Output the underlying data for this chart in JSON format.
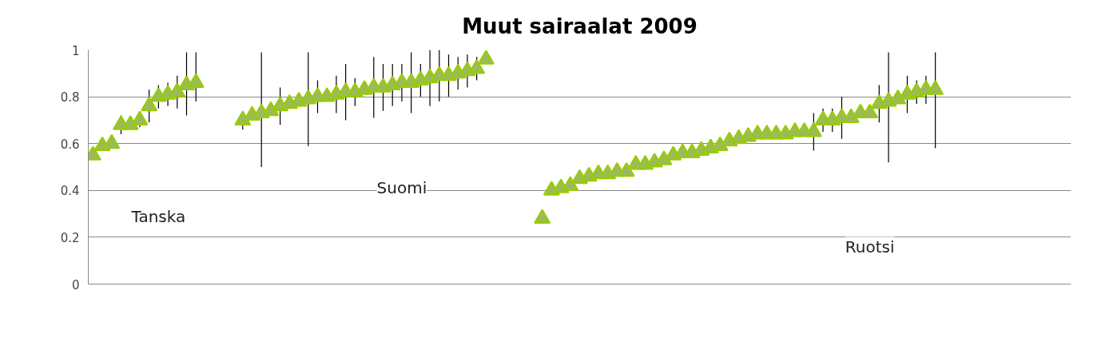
{
  "chart_data": {
    "type": "scatter",
    "title": "Muut sairaalat 2009",
    "categories": [
      null,
      null,
      null,
      null,
      null,
      null,
      null,
      null,
      null,
      null,
      null,
      null,
      null,
      null,
      null,
      null,
      null,
      null,
      null,
      null,
      null,
      null,
      null,
      null,
      null,
      null,
      null,
      null,
      null,
      null,
      null,
      null,
      null,
      null,
      null,
      null,
      null,
      null,
      null,
      null,
      null,
      null,
      null,
      null,
      null,
      null,
      null,
      null,
      null,
      null,
      null,
      null,
      null,
      null,
      null,
      null,
      null,
      null,
      null,
      null,
      null,
      null,
      null,
      null,
      null,
      null,
      null,
      null,
      null,
      null,
      null,
      null,
      null,
      null,
      null,
      null,
      null,
      null,
      null,
      null,
      null,
      null,
      null,
      null,
      null,
      null,
      null,
      null,
      null,
      null,
      null,
      null,
      null,
      null,
      null,
      null,
      null,
      null,
      null,
      null,
      null,
      null,
      null,
      null,
      null
    ],
    "series": [
      {
        "color": "#9bbb59",
        "values": [
          0.55,
          0.59,
          0.6,
          0.68,
          0.68,
          0.7,
          0.76,
          0.8,
          0.81,
          0.82,
          0.85,
          0.86,
          null,
          null,
          null,
          null,
          0.7,
          0.72,
          0.73,
          0.74,
          0.76,
          0.77,
          0.78,
          0.79,
          0.8,
          0.8,
          0.81,
          0.82,
          0.82,
          0.83,
          0.84,
          0.84,
          0.85,
          0.86,
          0.86,
          0.87,
          0.88,
          0.89,
          0.89,
          0.9,
          0.91,
          0.92,
          0.96,
          null,
          null,
          null,
          null,
          null,
          0.28,
          0.4,
          0.41,
          0.42,
          0.45,
          0.46,
          0.47,
          0.47,
          0.48,
          0.48,
          0.51,
          0.51,
          0.52,
          0.53,
          0.55,
          0.56,
          0.56,
          0.57,
          0.58,
          0.59,
          0.61,
          0.62,
          0.63,
          0.64,
          0.64,
          0.64,
          0.64,
          0.65,
          0.65,
          0.65,
          0.7,
          0.7,
          0.71,
          0.71,
          0.73,
          0.73,
          0.77,
          0.78,
          0.79,
          0.81,
          0.82,
          0.83,
          0.83,
          null,
          null,
          null,
          null,
          null,
          null,
          null,
          null,
          null,
          null,
          null,
          null,
          null,
          null
        ],
        "errors": [
          null,
          null,
          null,
          0.04,
          null,
          0.03,
          0.07,
          0.05,
          0.05,
          0.07,
          [
            0.72,
            0.99
          ],
          [
            0.78,
            0.99
          ],
          null,
          null,
          null,
          null,
          0.04,
          null,
          [
            0.5,
            0.99
          ],
          null,
          0.08,
          null,
          null,
          [
            0.59,
            0.99
          ],
          0.07,
          null,
          0.08,
          0.12,
          0.06,
          null,
          0.13,
          0.1,
          0.09,
          0.08,
          0.13,
          0.07,
          0.12,
          0.11,
          0.09,
          0.07,
          0.07,
          0.05,
          null,
          null,
          null,
          null,
          null,
          null,
          null,
          null,
          null,
          null,
          null,
          null,
          null,
          null,
          null,
          null,
          null,
          null,
          null,
          null,
          null,
          null,
          null,
          null,
          null,
          null,
          null,
          null,
          null,
          null,
          null,
          null,
          null,
          null,
          null,
          0.08,
          0.05,
          0.05,
          0.09,
          null,
          null,
          null,
          0.08,
          [
            0.52,
            0.99
          ],
          null,
          0.08,
          0.05,
          0.06,
          [
            0.58,
            0.99
          ],
          null,
          null,
          null,
          null,
          null,
          null,
          null,
          null,
          null,
          null,
          null,
          null,
          null,
          null
        ]
      }
    ],
    "marker": "triangle",
    "ylim": [
      0,
      1
    ],
    "yticks": [
      0,
      0.2,
      0.4,
      0.6,
      0.8,
      1
    ],
    "grid": "y",
    "tick_labels": "y",
    "annotations": [
      "Tanska",
      "Suomi",
      "Ruotsi"
    ]
  }
}
